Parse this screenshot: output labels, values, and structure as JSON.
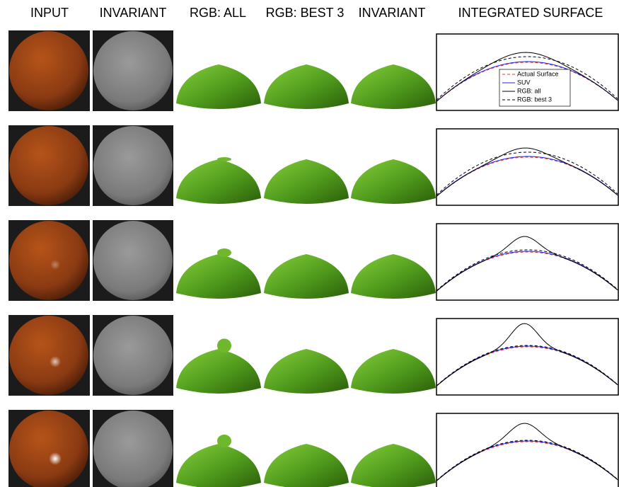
{
  "header": {
    "columns": [
      "INPUT",
      "INVARIANT",
      "RGB: ALL",
      "RGB: BEST 3",
      "INVARIANT",
      "INTEGRATED SURFACE"
    ]
  },
  "legend": {
    "entries": [
      "Actual Surface",
      "SUV",
      "RGB: all",
      "RGB: best 3"
    ]
  }
}
